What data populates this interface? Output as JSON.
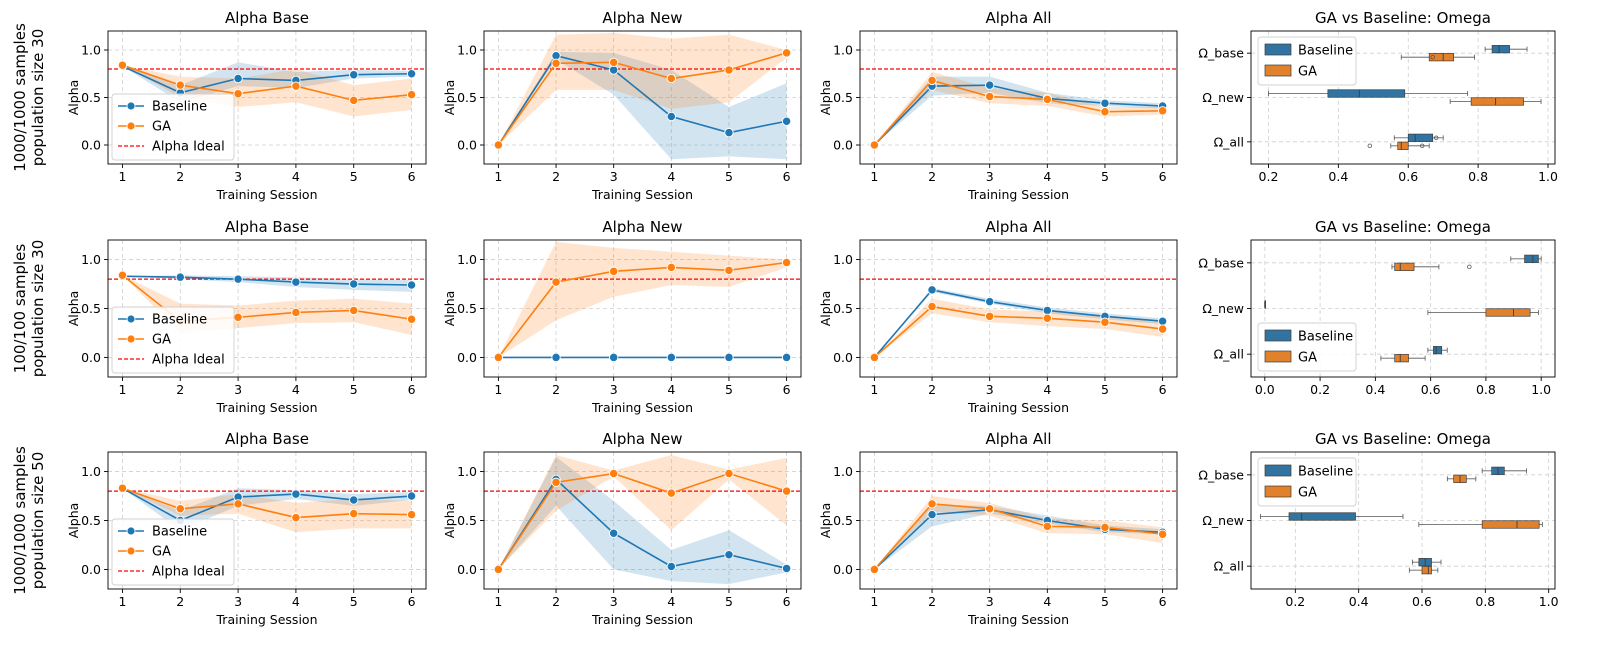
{
  "figure": {
    "row_labels": [
      [
        "1000/1000 samples",
        "population size 30"
      ],
      [
        "100/100 samples",
        "population size 30"
      ],
      [
        "1000/1000 samples",
        "population size 50"
      ]
    ]
  },
  "colors": {
    "baseline": "#1f77b4",
    "ga": "#ff7f0e",
    "baseline_box": "#3274a1",
    "ga_box": "#e1812c",
    "ideal": "#ff0000"
  },
  "chart_data": [
    {
      "type": "line",
      "row": 0,
      "col": 0,
      "title": "Alpha Base",
      "xlabel": "Training Session",
      "ylabel": "Alpha",
      "x": [
        1,
        2,
        3,
        4,
        5,
        6
      ],
      "ylim": [
        -0.2,
        1.2
      ],
      "yticks": [
        0.0,
        0.5,
        1.0
      ],
      "grid": true,
      "legend": "lower-left",
      "series": [
        {
          "name": "Baseline",
          "values": [
            0.83,
            0.55,
            0.7,
            0.68,
            0.74,
            0.75
          ],
          "band_low": [
            0.83,
            0.45,
            0.62,
            0.6,
            0.7,
            0.72
          ],
          "band_high": [
            0.83,
            0.63,
            0.87,
            0.77,
            0.79,
            0.78
          ]
        },
        {
          "name": "GA",
          "values": [
            0.84,
            0.63,
            0.54,
            0.62,
            0.47,
            0.53
          ],
          "band_low": [
            0.84,
            0.5,
            0.4,
            0.45,
            0.3,
            0.37
          ],
          "band_high": [
            0.84,
            0.72,
            0.7,
            0.8,
            0.63,
            0.7
          ]
        }
      ],
      "reference": {
        "name": "Alpha Ideal",
        "value": 0.8
      }
    },
    {
      "type": "line",
      "row": 0,
      "col": 1,
      "title": "Alpha New",
      "xlabel": "Training Session",
      "ylabel": "Alpha",
      "x": [
        1,
        2,
        3,
        4,
        5,
        6
      ],
      "ylim": [
        -0.2,
        1.2
      ],
      "yticks": [
        0.0,
        0.5,
        1.0
      ],
      "grid": true,
      "series": [
        {
          "name": "Baseline",
          "values": [
            0.0,
            0.94,
            0.79,
            0.3,
            0.13,
            0.25
          ],
          "band_low": [
            0.0,
            0.9,
            0.53,
            -0.15,
            -0.12,
            -0.15
          ],
          "band_high": [
            0.0,
            0.98,
            0.97,
            0.79,
            0.4,
            0.65
          ]
        },
        {
          "name": "GA",
          "values": [
            0.0,
            0.86,
            0.87,
            0.7,
            0.79,
            0.97
          ],
          "band_low": [
            0.0,
            0.58,
            0.58,
            0.38,
            0.45,
            0.92
          ],
          "band_high": [
            0.0,
            1.16,
            1.18,
            1.12,
            1.16,
            1.0
          ]
        }
      ],
      "reference": {
        "name": "Alpha Ideal",
        "value": 0.8
      }
    },
    {
      "type": "line",
      "row": 0,
      "col": 2,
      "title": "Alpha All",
      "xlabel": "Training Session",
      "ylabel": "Alpha",
      "x": [
        1,
        2,
        3,
        4,
        5,
        6
      ],
      "ylim": [
        -0.2,
        1.2
      ],
      "yticks": [
        0.0,
        0.5,
        1.0
      ],
      "grid": true,
      "series": [
        {
          "name": "Baseline",
          "values": [
            0.0,
            0.62,
            0.63,
            0.49,
            0.44,
            0.41
          ],
          "band_low": [
            0.0,
            0.52,
            0.55,
            0.44,
            0.41,
            0.38
          ],
          "band_high": [
            0.0,
            0.72,
            0.72,
            0.55,
            0.47,
            0.44
          ]
        },
        {
          "name": "GA",
          "values": [
            0.0,
            0.68,
            0.51,
            0.48,
            0.35,
            0.36
          ],
          "band_low": [
            0.0,
            0.58,
            0.44,
            0.41,
            0.3,
            0.32
          ],
          "band_high": [
            0.0,
            0.77,
            0.6,
            0.55,
            0.4,
            0.4
          ]
        }
      ],
      "reference": {
        "name": "Alpha Ideal",
        "value": 0.8
      }
    },
    {
      "type": "box",
      "row": 0,
      "col": 3,
      "title": "GA vs Baseline: Omega",
      "categories": [
        "Ω_base",
        "Ω_new",
        "Ω_all"
      ],
      "xlim": [
        0.15,
        1.02
      ],
      "xticks": [
        0.2,
        0.4,
        0.6,
        0.8,
        1.0
      ],
      "grid": true,
      "legend": "top-left",
      "series": [
        {
          "name": "Baseline",
          "boxes": [
            {
              "min": 0.82,
              "q1": 0.84,
              "med": 0.86,
              "q3": 0.89,
              "max": 0.94,
              "fliers": []
            },
            {
              "min": 0.2,
              "q1": 0.37,
              "med": 0.46,
              "q3": 0.59,
              "max": 0.77,
              "fliers": []
            },
            {
              "min": 0.56,
              "q1": 0.6,
              "med": 0.62,
              "q3": 0.67,
              "max": 0.7,
              "fliers": [
                0.68
              ]
            }
          ]
        },
        {
          "name": "GA",
          "boxes": [
            {
              "min": 0.58,
              "q1": 0.66,
              "med": 0.7,
              "q3": 0.73,
              "max": 0.79,
              "fliers": [
                0.67
              ]
            },
            {
              "min": 0.72,
              "q1": 0.78,
              "med": 0.85,
              "q3": 0.93,
              "max": 0.98,
              "fliers": []
            },
            {
              "min": 0.55,
              "q1": 0.57,
              "med": 0.58,
              "q3": 0.6,
              "max": 0.66,
              "fliers": [
                0.49,
                0.64
              ]
            }
          ]
        }
      ]
    },
    {
      "type": "line",
      "row": 1,
      "col": 0,
      "title": "Alpha Base",
      "xlabel": "Training Session",
      "ylabel": "Alpha",
      "x": [
        1,
        2,
        3,
        4,
        5,
        6
      ],
      "ylim": [
        -0.2,
        1.2
      ],
      "yticks": [
        0.0,
        0.5,
        1.0
      ],
      "grid": true,
      "legend": "lower-left",
      "series": [
        {
          "name": "Baseline",
          "values": [
            0.83,
            0.82,
            0.8,
            0.77,
            0.75,
            0.74
          ],
          "band_low": [
            0.83,
            0.8,
            0.77,
            0.72,
            0.69,
            0.67
          ],
          "band_high": [
            0.83,
            0.84,
            0.83,
            0.82,
            0.8,
            0.79
          ]
        },
        {
          "name": "GA",
          "values": [
            0.84,
            0.37,
            0.41,
            0.46,
            0.48,
            0.39
          ],
          "band_low": [
            0.84,
            0.25,
            0.3,
            0.35,
            0.36,
            0.23
          ],
          "band_high": [
            0.84,
            0.55,
            0.53,
            0.58,
            0.6,
            0.55
          ]
        }
      ],
      "reference": {
        "name": "Alpha Ideal",
        "value": 0.8
      }
    },
    {
      "type": "line",
      "row": 1,
      "col": 1,
      "title": "Alpha New",
      "xlabel": "Training Session",
      "ylabel": "Alpha",
      "x": [
        1,
        2,
        3,
        4,
        5,
        6
      ],
      "ylim": [
        -0.2,
        1.2
      ],
      "yticks": [
        0.0,
        0.5,
        1.0
      ],
      "grid": true,
      "series": [
        {
          "name": "Baseline",
          "values": [
            0.0,
            0.0,
            0.0,
            0.0,
            0.0,
            0.0
          ],
          "band_low": [
            0.0,
            0.0,
            0.0,
            0.0,
            0.0,
            0.0
          ],
          "band_high": [
            0.0,
            0.0,
            0.0,
            0.0,
            0.0,
            0.0
          ]
        },
        {
          "name": "GA",
          "values": [
            0.0,
            0.77,
            0.88,
            0.92,
            0.89,
            0.97
          ],
          "band_low": [
            0.0,
            0.38,
            0.62,
            0.74,
            0.72,
            0.92
          ],
          "band_high": [
            0.0,
            1.18,
            1.12,
            1.08,
            1.04,
            1.0
          ]
        }
      ],
      "reference": {
        "name": "Alpha Ideal",
        "value": 0.8
      }
    },
    {
      "type": "line",
      "row": 1,
      "col": 2,
      "title": "Alpha All",
      "xlabel": "Training Session",
      "ylabel": "Alpha",
      "x": [
        1,
        2,
        3,
        4,
        5,
        6
      ],
      "ylim": [
        -0.2,
        1.2
      ],
      "yticks": [
        0.0,
        0.5,
        1.0
      ],
      "grid": true,
      "series": [
        {
          "name": "Baseline",
          "values": [
            0.0,
            0.69,
            0.57,
            0.48,
            0.42,
            0.37
          ],
          "band_low": [
            0.0,
            0.67,
            0.55,
            0.45,
            0.39,
            0.34
          ],
          "band_high": [
            0.0,
            0.71,
            0.6,
            0.51,
            0.45,
            0.4
          ]
        },
        {
          "name": "GA",
          "values": [
            0.0,
            0.52,
            0.42,
            0.4,
            0.36,
            0.29
          ],
          "band_low": [
            0.0,
            0.45,
            0.36,
            0.32,
            0.29,
            0.21
          ],
          "band_high": [
            0.0,
            0.6,
            0.49,
            0.47,
            0.43,
            0.37
          ]
        }
      ],
      "reference": {
        "name": "Alpha Ideal",
        "value": 0.8
      }
    },
    {
      "type": "box",
      "row": 1,
      "col": 3,
      "title": "GA vs Baseline: Omega",
      "categories": [
        "Ω_base",
        "Ω_new",
        "Ω_all"
      ],
      "xlim": [
        -0.05,
        1.05
      ],
      "xticks": [
        0.0,
        0.2,
        0.4,
        0.6,
        0.8,
        1.0
      ],
      "grid": true,
      "legend": "lower-left",
      "series": [
        {
          "name": "Baseline",
          "boxes": [
            {
              "min": 0.89,
              "q1": 0.94,
              "med": 0.97,
              "q3": 0.99,
              "max": 1.0,
              "fliers": []
            },
            {
              "min": 0.0,
              "q1": 0.0,
              "med": 0.0,
              "q3": 0.0,
              "max": 0.0,
              "fliers": []
            },
            {
              "min": 0.59,
              "q1": 0.61,
              "med": 0.62,
              "q3": 0.64,
              "max": 0.66,
              "fliers": []
            }
          ]
        },
        {
          "name": "GA",
          "boxes": [
            {
              "min": 0.46,
              "q1": 0.47,
              "med": 0.49,
              "q3": 0.54,
              "max": 0.63,
              "fliers": [
                0.74
              ]
            },
            {
              "min": 0.59,
              "q1": 0.8,
              "med": 0.9,
              "q3": 0.96,
              "max": 0.99,
              "fliers": []
            },
            {
              "min": 0.42,
              "q1": 0.47,
              "med": 0.49,
              "q3": 0.52,
              "max": 0.58,
              "fliers": []
            }
          ]
        }
      ]
    },
    {
      "type": "line",
      "row": 2,
      "col": 0,
      "title": "Alpha Base",
      "xlabel": "Training Session",
      "ylabel": "Alpha",
      "x": [
        1,
        2,
        3,
        4,
        5,
        6
      ],
      "ylim": [
        -0.2,
        1.2
      ],
      "yticks": [
        0.0,
        0.5,
        1.0
      ],
      "grid": true,
      "legend": "lower-left",
      "series": [
        {
          "name": "Baseline",
          "values": [
            0.83,
            0.5,
            0.74,
            0.77,
            0.71,
            0.75
          ],
          "band_low": [
            0.83,
            0.4,
            0.65,
            0.72,
            0.65,
            0.71
          ],
          "band_high": [
            0.83,
            0.6,
            0.83,
            0.81,
            0.77,
            0.79
          ]
        },
        {
          "name": "GA",
          "values": [
            0.83,
            0.62,
            0.67,
            0.53,
            0.57,
            0.56
          ],
          "band_low": [
            0.83,
            0.55,
            0.57,
            0.38,
            0.42,
            0.42
          ],
          "band_high": [
            0.83,
            0.7,
            0.77,
            0.68,
            0.72,
            0.7
          ]
        }
      ],
      "reference": {
        "name": "Alpha Ideal",
        "value": 0.8
      }
    },
    {
      "type": "line",
      "row": 2,
      "col": 1,
      "title": "Alpha New",
      "xlabel": "Training Session",
      "ylabel": "Alpha",
      "x": [
        1,
        2,
        3,
        4,
        5,
        6
      ],
      "ylim": [
        -0.2,
        1.2
      ],
      "yticks": [
        0.0,
        0.5,
        1.0
      ],
      "grid": true,
      "series": [
        {
          "name": "Baseline",
          "values": [
            0.0,
            0.92,
            0.37,
            0.03,
            0.15,
            0.01
          ],
          "band_low": [
            0.0,
            0.65,
            0.0,
            -0.12,
            -0.15,
            -0.03
          ],
          "band_high": [
            0.0,
            1.15,
            0.7,
            0.2,
            0.4,
            0.05
          ]
        },
        {
          "name": "GA",
          "values": [
            0.0,
            0.89,
            0.98,
            0.78,
            0.98,
            0.8
          ],
          "band_low": [
            0.0,
            0.6,
            0.95,
            0.4,
            0.92,
            0.45
          ],
          "band_high": [
            0.0,
            1.17,
            1.01,
            1.17,
            1.02,
            1.14
          ]
        }
      ],
      "reference": {
        "name": "Alpha Ideal",
        "value": 0.8
      }
    },
    {
      "type": "line",
      "row": 2,
      "col": 2,
      "title": "Alpha All",
      "xlabel": "Training Session",
      "ylabel": "Alpha",
      "x": [
        1,
        2,
        3,
        4,
        5,
        6
      ],
      "ylim": [
        -0.2,
        1.2
      ],
      "yticks": [
        0.0,
        0.5,
        1.0
      ],
      "grid": true,
      "series": [
        {
          "name": "Baseline",
          "values": [
            0.0,
            0.56,
            0.61,
            0.5,
            0.41,
            0.38
          ],
          "band_low": [
            0.0,
            0.44,
            0.57,
            0.47,
            0.38,
            0.36
          ],
          "band_high": [
            0.0,
            0.66,
            0.65,
            0.55,
            0.45,
            0.41
          ]
        },
        {
          "name": "GA",
          "values": [
            0.0,
            0.67,
            0.62,
            0.44,
            0.43,
            0.36
          ],
          "band_low": [
            0.0,
            0.59,
            0.55,
            0.37,
            0.36,
            0.27
          ],
          "band_high": [
            0.0,
            0.75,
            0.68,
            0.52,
            0.5,
            0.43
          ]
        }
      ],
      "reference": {
        "name": "Alpha Ideal",
        "value": 0.8
      }
    },
    {
      "type": "box",
      "row": 2,
      "col": 3,
      "title": "GA vs Baseline: Omega",
      "categories": [
        "Ω_base",
        "Ω_new",
        "Ω_all"
      ],
      "xlim": [
        0.06,
        1.02
      ],
      "xticks": [
        0.2,
        0.4,
        0.6,
        0.8,
        1.0
      ],
      "grid": true,
      "legend": "top-left",
      "series": [
        {
          "name": "Baseline",
          "boxes": [
            {
              "min": 0.79,
              "q1": 0.82,
              "med": 0.84,
              "q3": 0.86,
              "max": 0.93,
              "fliers": []
            },
            {
              "min": 0.09,
              "q1": 0.18,
              "med": 0.22,
              "q3": 0.39,
              "max": 0.54,
              "fliers": []
            },
            {
              "min": 0.57,
              "q1": 0.59,
              "med": 0.61,
              "q3": 0.63,
              "max": 0.66,
              "fliers": []
            }
          ]
        },
        {
          "name": "GA",
          "boxes": [
            {
              "min": 0.68,
              "q1": 0.7,
              "med": 0.72,
              "q3": 0.74,
              "max": 0.77,
              "fliers": []
            },
            {
              "min": 0.59,
              "q1": 0.79,
              "med": 0.9,
              "q3": 0.97,
              "max": 0.98,
              "fliers": []
            },
            {
              "min": 0.56,
              "q1": 0.6,
              "med": 0.62,
              "q3": 0.63,
              "max": 0.65,
              "fliers": []
            }
          ]
        }
      ]
    }
  ]
}
